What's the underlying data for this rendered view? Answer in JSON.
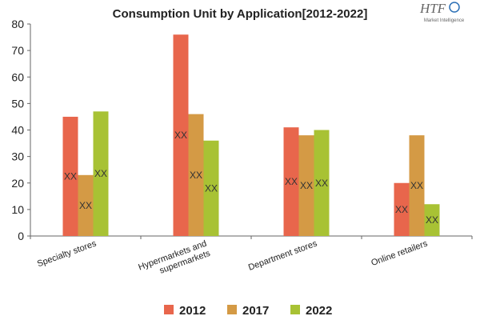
{
  "chart_data": {
    "type": "bar",
    "title": "Consumption Unit by  Application[2012-2022]",
    "categories": [
      "Specialty stores",
      "Hypermarkets and supermarkets",
      "Department stores",
      "Online retailers"
    ],
    "category_lines": [
      [
        "Specialty stores"
      ],
      [
        "Hypermarkets and",
        "supermarkets"
      ],
      [
        "Department stores"
      ],
      [
        "Online retailers"
      ]
    ],
    "series": [
      {
        "name": "2012",
        "color": "#e8664c",
        "values": [
          45,
          76,
          41,
          20
        ],
        "labels": [
          "XX",
          "XX",
          "XX",
          "XX"
        ]
      },
      {
        "name": "2017",
        "color": "#d49a45",
        "values": [
          23,
          46,
          38,
          38
        ],
        "labels": [
          "XX",
          "XX",
          "XX",
          "XX"
        ]
      },
      {
        "name": "2022",
        "color": "#a8c234",
        "values": [
          47,
          36,
          40,
          12
        ],
        "labels": [
          "XX",
          "XX",
          "XX",
          "XX"
        ]
      }
    ],
    "ylim": [
      0,
      80
    ],
    "yticks": [
      0,
      10,
      20,
      30,
      40,
      50,
      60,
      70,
      80
    ],
    "grid": false,
    "legend_position": "bottom",
    "xlabel": "",
    "ylabel": ""
  },
  "logo": {
    "text": "HTF",
    "subtext": "Market Intelligence"
  }
}
